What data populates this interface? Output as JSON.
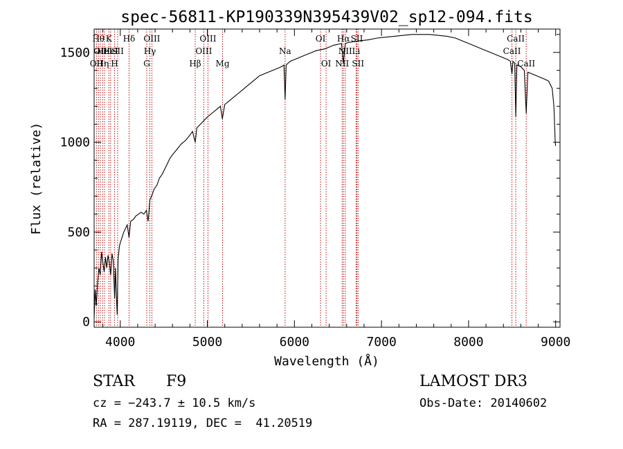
{
  "chart_data": {
    "type": "line",
    "title": "spec-56811-KP190339N395439V02_sp12-094.fits",
    "xlabel": "Wavelength (Å)",
    "ylabel": "Flux (relative)",
    "xlim": [
      3700,
      9050
    ],
    "ylim": [
      -30,
      1630
    ],
    "xticks": [
      4000,
      5000,
      6000,
      7000,
      8000,
      9000
    ],
    "yticks": [
      0,
      500,
      1000,
      1500
    ],
    "series": [
      {
        "name": "flux",
        "points": [
          [
            3700,
            20
          ],
          [
            3712,
            180
          ],
          [
            3725,
            90
          ],
          [
            3740,
            220
          ],
          [
            3755,
            300
          ],
          [
            3770,
            260
          ],
          [
            3785,
            390
          ],
          [
            3800,
            330
          ],
          [
            3815,
            280
          ],
          [
            3830,
            360
          ],
          [
            3845,
            300
          ],
          [
            3860,
            370
          ],
          [
            3875,
            330
          ],
          [
            3890,
            260
          ],
          [
            3905,
            380
          ],
          [
            3920,
            340
          ],
          [
            3935,
            130
          ],
          [
            3945,
            300
          ],
          [
            3955,
            150
          ],
          [
            3965,
            40
          ],
          [
            3975,
            350
          ],
          [
            3990,
            420
          ],
          [
            4000,
            440
          ],
          [
            4020,
            470
          ],
          [
            4040,
            500
          ],
          [
            4060,
            520
          ],
          [
            4080,
            540
          ],
          [
            4101,
            470
          ],
          [
            4120,
            560
          ],
          [
            4150,
            570
          ],
          [
            4180,
            590
          ],
          [
            4210,
            600
          ],
          [
            4240,
            610
          ],
          [
            4270,
            600
          ],
          [
            4300,
            620
          ],
          [
            4320,
            560
          ],
          [
            4340,
            680
          ],
          [
            4360,
            700
          ],
          [
            4390,
            740
          ],
          [
            4420,
            760
          ],
          [
            4450,
            800
          ],
          [
            4480,
            820
          ],
          [
            4510,
            850
          ],
          [
            4540,
            880
          ],
          [
            4570,
            910
          ],
          [
            4600,
            930
          ],
          [
            4650,
            960
          ],
          [
            4700,
            990
          ],
          [
            4750,
            1010
          ],
          [
            4800,
            1040
          ],
          [
            4830,
            1060
          ],
          [
            4861,
            1000
          ],
          [
            4880,
            1080
          ],
          [
            4920,
            1100
          ],
          [
            4960,
            1120
          ],
          [
            5000,
            1140
          ],
          [
            5050,
            1160
          ],
          [
            5100,
            1180
          ],
          [
            5150,
            1200
          ],
          [
            5172,
            1130
          ],
          [
            5200,
            1210
          ],
          [
            5250,
            1230
          ],
          [
            5300,
            1250
          ],
          [
            5350,
            1270
          ],
          [
            5400,
            1290
          ],
          [
            5450,
            1310
          ],
          [
            5500,
            1330
          ],
          [
            5550,
            1350
          ],
          [
            5600,
            1370
          ],
          [
            5650,
            1380
          ],
          [
            5700,
            1390
          ],
          [
            5750,
            1400
          ],
          [
            5800,
            1410
          ],
          [
            5850,
            1420
          ],
          [
            5880,
            1430
          ],
          [
            5893,
            1240
          ],
          [
            5905,
            1430
          ],
          [
            5950,
            1450
          ],
          [
            6000,
            1460
          ],
          [
            6050,
            1470
          ],
          [
            6100,
            1480
          ],
          [
            6150,
            1490
          ],
          [
            6200,
            1500
          ],
          [
            6250,
            1510
          ],
          [
            6300,
            1515
          ],
          [
            6350,
            1520
          ],
          [
            6400,
            1530
          ],
          [
            6450,
            1540
          ],
          [
            6500,
            1545
          ],
          [
            6540,
            1550
          ],
          [
            6563,
            1440
          ],
          [
            6585,
            1550
          ],
          [
            6620,
            1555
          ],
          [
            6680,
            1560
          ],
          [
            6750,
            1565
          ],
          [
            6850,
            1570
          ],
          [
            6950,
            1580
          ],
          [
            7050,
            1585
          ],
          [
            7150,
            1590
          ],
          [
            7250,
            1595
          ],
          [
            7350,
            1600
          ],
          [
            7450,
            1600
          ],
          [
            7550,
            1600
          ],
          [
            7650,
            1595
          ],
          [
            7750,
            1590
          ],
          [
            7850,
            1580
          ],
          [
            7950,
            1560
          ],
          [
            8050,
            1540
          ],
          [
            8150,
            1520
          ],
          [
            8250,
            1500
          ],
          [
            8350,
            1480
          ],
          [
            8400,
            1470
          ],
          [
            8450,
            1460
          ],
          [
            8480,
            1450
          ],
          [
            8498,
            1380
          ],
          [
            8510,
            1450
          ],
          [
            8530,
            1440
          ],
          [
            8542,
            1140
          ],
          [
            8555,
            1430
          ],
          [
            8600,
            1420
          ],
          [
            8640,
            1400
          ],
          [
            8662,
            1160
          ],
          [
            8680,
            1390
          ],
          [
            8730,
            1380
          ],
          [
            8780,
            1370
          ],
          [
            8830,
            1360
          ],
          [
            8880,
            1350
          ],
          [
            8920,
            1340
          ],
          [
            8960,
            1300
          ],
          [
            8980,
            1200
          ],
          [
            8995,
            1000
          ],
          [
            9000,
            980
          ]
        ]
      }
    ],
    "lines": [
      {
        "wave": 3727,
        "label": "OII",
        "row": 3
      },
      {
        "wave": 3750,
        "label": "Hθ",
        "row": 1
      },
      {
        "wave": 3771,
        "label": "OII",
        "row": 2
      },
      {
        "wave": 3798,
        "label": "Hη",
        "row": 3
      },
      {
        "wave": 3820,
        "label": "HeI",
        "row": 2
      },
      {
        "wave": 3869,
        "label": "K",
        "row": 1
      },
      {
        "wave": 3889,
        "label": "HeI",
        "row": 2
      },
      {
        "wave": 3934,
        "label": "H",
        "row": 3
      },
      {
        "wave": 3970,
        "label": "SII",
        "row": 2
      },
      {
        "wave": 4101,
        "label": "Hδ",
        "row": 1
      },
      {
        "wave": 4304,
        "label": "G",
        "row": 3
      },
      {
        "wave": 4340,
        "label": "Hγ",
        "row": 2
      },
      {
        "wave": 4363,
        "label": "OIII",
        "row": 1
      },
      {
        "wave": 4861,
        "label": "Hβ",
        "row": 3
      },
      {
        "wave": 4959,
        "label": "OIII",
        "row": 2
      },
      {
        "wave": 5007,
        "label": "OIII",
        "row": 1
      },
      {
        "wave": 5175,
        "label": "Mg",
        "row": 3
      },
      {
        "wave": 5893,
        "label": "Na",
        "row": 2
      },
      {
        "wave": 6300,
        "label": "OI",
        "row": 1
      },
      {
        "wave": 6364,
        "label": "OI",
        "row": 3
      },
      {
        "wave": 6548,
        "label": "NII",
        "row": 3
      },
      {
        "wave": 6563,
        "label": "Hα",
        "row": 1
      },
      {
        "wave": 6584,
        "label": "NII",
        "row": 2
      },
      {
        "wave": 6708,
        "label": "Li",
        "row": 2
      },
      {
        "wave": 6717,
        "label": "SII",
        "row": 1
      },
      {
        "wave": 6731,
        "label": "SII",
        "row": 3
      },
      {
        "wave": 8498,
        "label": "CaII",
        "row": 2
      },
      {
        "wave": 8542,
        "label": "CaII",
        "row": 1
      },
      {
        "wave": 8662,
        "label": "CaII",
        "row": 3
      }
    ]
  },
  "info": {
    "object_type": "STAR",
    "subclass": "F9",
    "survey": "LAMOST DR3",
    "cz": "cz = −243.7 ± 10.5 km/s",
    "obs_date": "Obs-Date: 20140602",
    "coords": "RA = 287.19119, DEC =  41.20519"
  },
  "colors": {
    "line_marker": "#c00000",
    "spectrum": "#000000"
  }
}
